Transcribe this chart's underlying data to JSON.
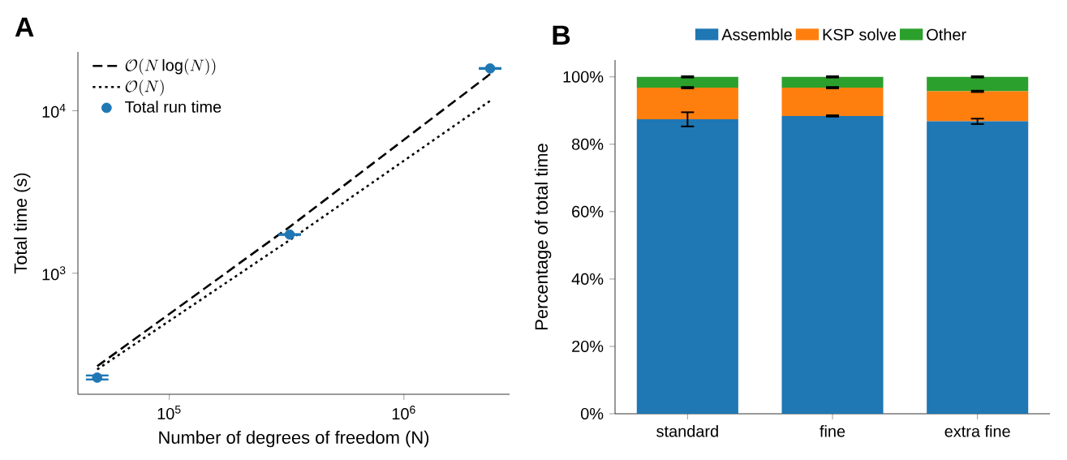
{
  "chart_data": [
    {
      "type": "line",
      "title": "A",
      "xlabel": "Number of degrees of freedom (N)",
      "ylabel": "Total time (s)",
      "log": "xy",
      "xlim": [
        40800,
        2820000
      ],
      "ylim": [
        180,
        23000
      ],
      "xticks": [
        {
          "value": 100000,
          "label": "10$^{5}$"
        },
        {
          "value": 1000000,
          "label": "10$^{6}$"
        }
      ],
      "yticks": [
        {
          "value": 1000,
          "label": "10$^{3}$"
        },
        {
          "value": 10000,
          "label": "10$^{4}$"
        }
      ],
      "legend": "top left",
      "series": [
        {
          "name": "\\mathcal{O}(N\\log(N))",
          "type": "line",
          "color": "#000000",
          "line_style": "dashed",
          "marker": "none",
          "x": [
            49300,
            326000,
            2330000
          ],
          "values": [
            268,
            1930,
            16800
          ]
        },
        {
          "name": "\\mathcal{O}(N)",
          "type": "line",
          "color": "#000000",
          "line_style": "dotted",
          "marker": "none",
          "x": [
            49300,
            326000,
            2330000
          ],
          "values": [
            256,
            1600,
            11500
          ]
        },
        {
          "name": "Total run time",
          "type": "scatter",
          "color": "#1f77b4",
          "marker": "circle",
          "x": [
            49300,
            326000,
            2330000
          ],
          "values": [
            228,
            1730,
            18200
          ],
          "errors": [
            [
              222,
              235
            ],
            [
              1720,
              1740
            ],
            [
              18100,
              18300
            ]
          ]
        }
      ]
    },
    {
      "type": "bar",
      "stacked": true,
      "title": "B",
      "ylabel": "Percentage of total time",
      "categories": [
        "standard",
        "fine",
        "extra fine"
      ],
      "ylim": [
        0,
        105
      ],
      "yticks": [
        {
          "value": 0,
          "label": "0%"
        },
        {
          "value": 20,
          "label": "20%"
        },
        {
          "value": 40,
          "label": "40%"
        },
        {
          "value": 60,
          "label": "60%"
        },
        {
          "value": 80,
          "label": "80%"
        },
        {
          "value": 100,
          "label": "100%"
        }
      ],
      "legend": "top",
      "series": [
        {
          "name": "Assemble",
          "color": "#1f77b4",
          "values": [
            87.4,
            88.4,
            86.8
          ],
          "errors": [
            2.1,
            0.2,
            0.8
          ]
        },
        {
          "name": "KSP solve",
          "color": "#ff7f0e",
          "values": [
            9.4,
            8.4,
            8.9
          ],
          "errors": [
            0.2,
            0.2,
            0.2
          ]
        },
        {
          "name": "Other",
          "color": "#2ca02c",
          "values": [
            3.2,
            3.2,
            4.3
          ],
          "errors": [
            0.2,
            0.2,
            0.2
          ]
        }
      ]
    }
  ]
}
